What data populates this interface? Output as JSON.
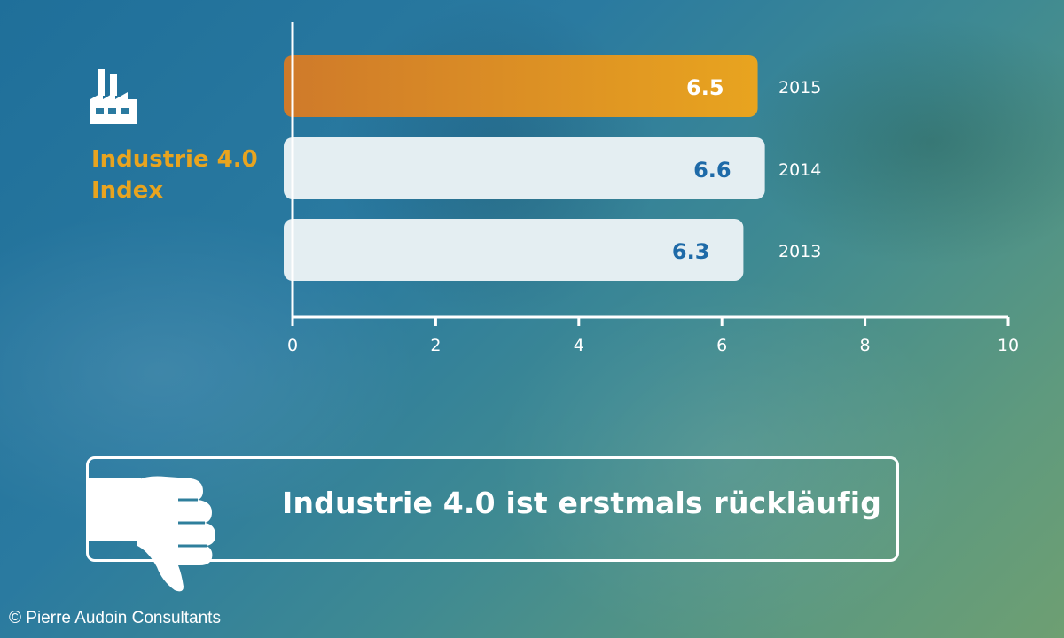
{
  "chart_data": {
    "type": "bar",
    "orientation": "horizontal",
    "title_lines": [
      "Industrie 4.0",
      "Index"
    ],
    "categories": [
      "2015",
      "2014",
      "2013"
    ],
    "values": [
      6.5,
      6.6,
      6.3
    ],
    "value_labels": [
      "6.5",
      "6.6",
      "6.3"
    ],
    "xlim": [
      0,
      10
    ],
    "xticks": [
      "0",
      "2",
      "4",
      "6",
      "8",
      "10"
    ],
    "grid": false,
    "colors": {
      "highlight": "#e8a41f",
      "highlight_start": "#cf7a2a",
      "bar": "#e4eef2",
      "label_dark": "#1e6aa8",
      "label_light": "#ffffff",
      "axis": "#ffffff",
      "title": "#e8a41f"
    }
  },
  "banner": {
    "text": "Industrie 4.0 ist erstmals rückläufig",
    "icon": "thumbs-down-icon"
  },
  "header_icon": "factory-icon",
  "copyright": "© Pierre Audoin Consultants"
}
